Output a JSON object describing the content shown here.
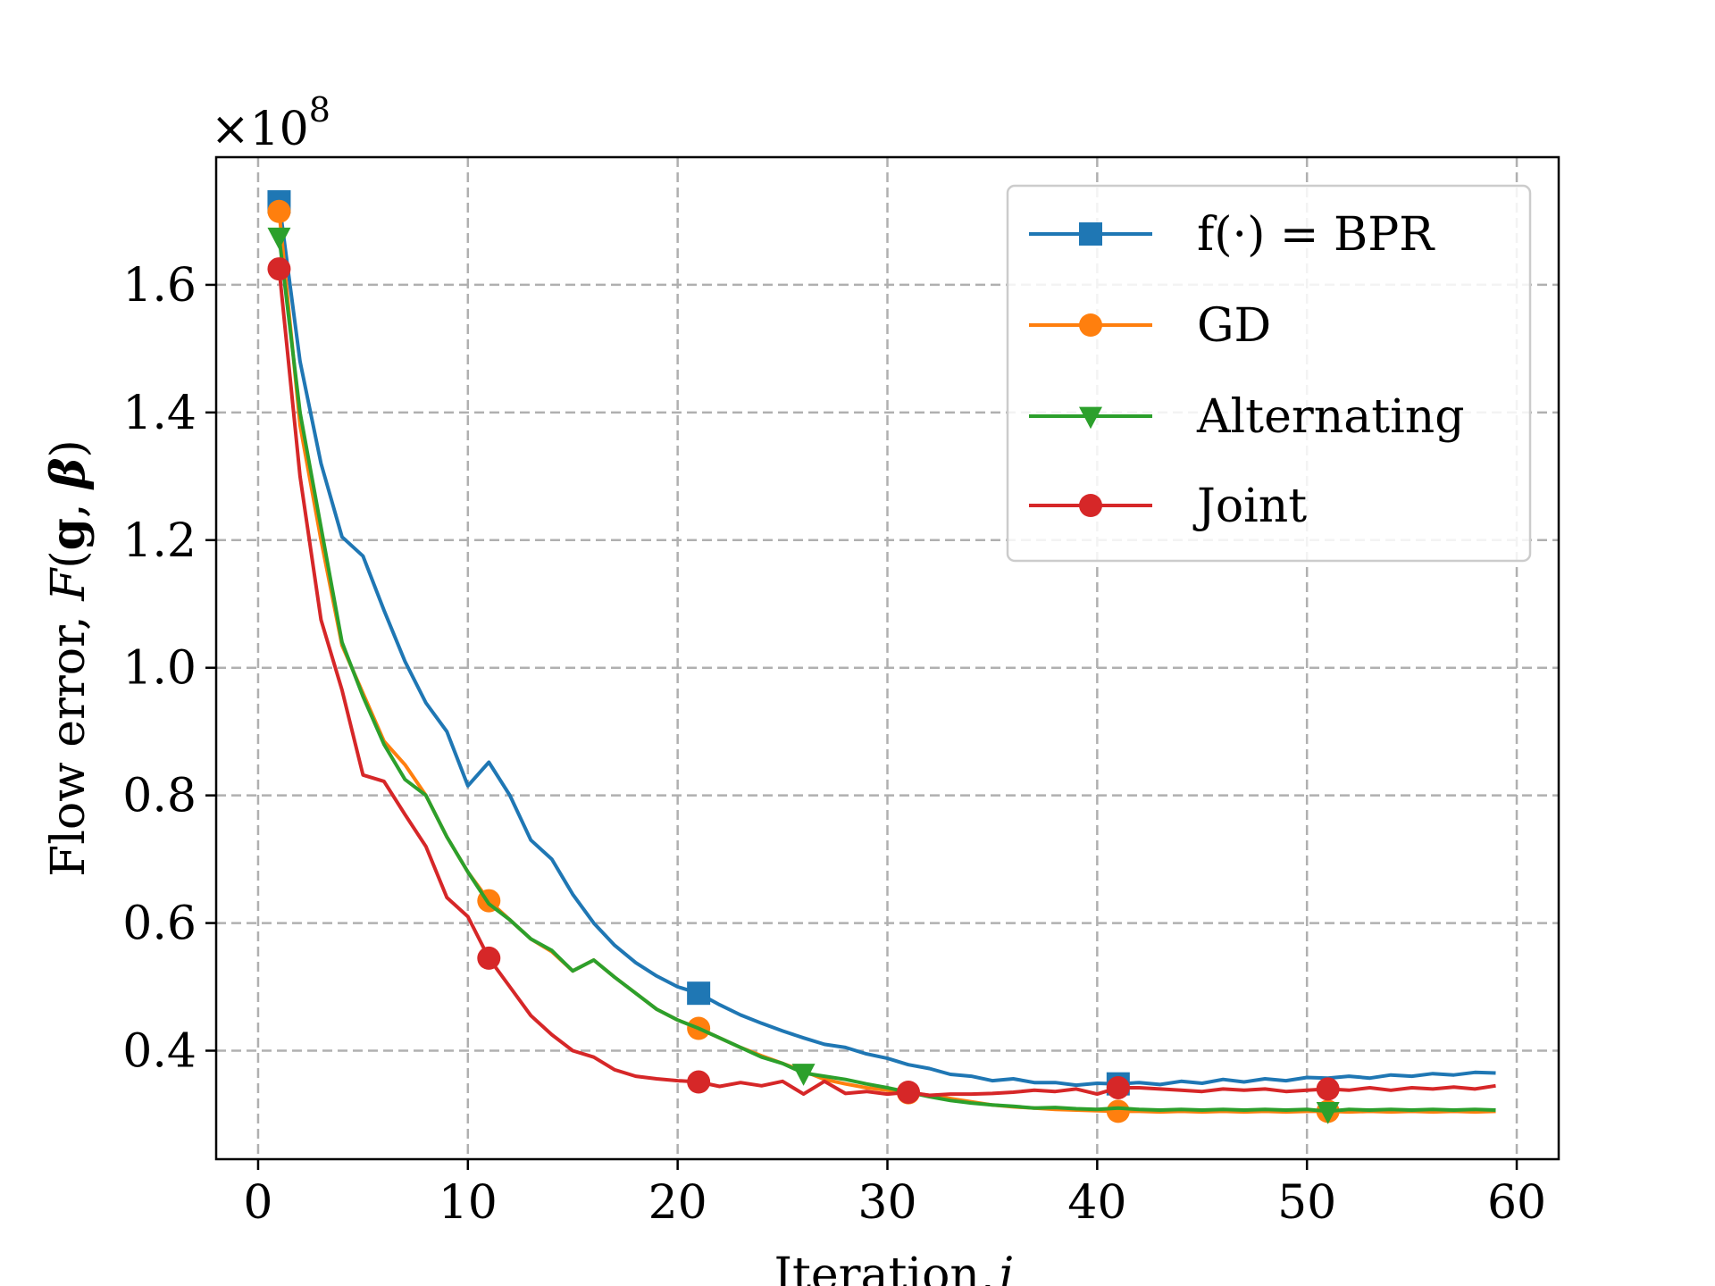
{
  "chart_data": {
    "type": "line",
    "title": "",
    "xlabel": "Iteration, j",
    "ylabel": "Flow error, F(g, β)",
    "y_multiplier": "×10^8",
    "xlim": [
      -2,
      62
    ],
    "ylim": [
      0.23,
      1.8
    ],
    "xticks": [
      0,
      10,
      20,
      30,
      40,
      50,
      60
    ],
    "xtick_labels": [
      "0",
      "10",
      "20",
      "30",
      "40",
      "50",
      "60"
    ],
    "yticks": [
      0.4,
      0.6,
      0.8,
      1.0,
      1.2,
      1.4,
      1.6
    ],
    "ytick_labels": [
      "0.4",
      "0.6",
      "0.8",
      "1.0",
      "1.2",
      "1.4",
      "1.6"
    ],
    "grid": true,
    "legend_position": "top-right",
    "series": [
      {
        "name": "f(·) = BPR",
        "color": "#1f77b4",
        "marker": "square",
        "marker_every": 20,
        "x": [
          1,
          2,
          3,
          4,
          5,
          6,
          7,
          8,
          9,
          10,
          11,
          12,
          13,
          14,
          15,
          16,
          17,
          18,
          19,
          20,
          21,
          22,
          23,
          24,
          25,
          26,
          27,
          28,
          29,
          30,
          31,
          32,
          33,
          34,
          35,
          36,
          37,
          38,
          39,
          40,
          41,
          42,
          43,
          44,
          45,
          46,
          47,
          48,
          49,
          50,
          51,
          52,
          53,
          54,
          55,
          56,
          57,
          58,
          59
        ],
        "y": [
          1.73,
          1.48,
          1.32,
          1.205,
          1.175,
          1.09,
          1.01,
          0.945,
          0.9,
          0.815,
          0.852,
          0.8,
          0.73,
          0.7,
          0.645,
          0.6,
          0.565,
          0.538,
          0.517,
          0.5,
          0.49,
          0.472,
          0.456,
          0.443,
          0.431,
          0.42,
          0.41,
          0.405,
          0.395,
          0.388,
          0.378,
          0.372,
          0.363,
          0.36,
          0.353,
          0.356,
          0.35,
          0.35,
          0.346,
          0.349,
          0.348,
          0.35,
          0.347,
          0.352,
          0.349,
          0.355,
          0.351,
          0.356,
          0.353,
          0.358,
          0.357,
          0.36,
          0.357,
          0.362,
          0.36,
          0.364,
          0.362,
          0.366,
          0.365
        ]
      },
      {
        "name": "GD",
        "color": "#ff7f0e",
        "marker": "circle",
        "marker_every": 10,
        "x": [
          1,
          2,
          3,
          4,
          5,
          6,
          7,
          8,
          9,
          10,
          11,
          12,
          13,
          14,
          15,
          16,
          17,
          18,
          19,
          20,
          21,
          22,
          23,
          24,
          25,
          26,
          27,
          28,
          29,
          30,
          31,
          32,
          33,
          34,
          35,
          36,
          37,
          38,
          39,
          40,
          41,
          42,
          43,
          44,
          45,
          46,
          47,
          48,
          49,
          50,
          51,
          52,
          53,
          54,
          55,
          56,
          57,
          58,
          59
        ],
        "y": [
          1.715,
          1.38,
          1.2,
          1.035,
          0.96,
          0.885,
          0.848,
          0.8,
          0.735,
          0.68,
          0.635,
          0.605,
          0.575,
          0.555,
          0.525,
          0.542,
          0.515,
          0.49,
          0.465,
          0.448,
          0.435,
          0.42,
          0.405,
          0.392,
          0.38,
          0.368,
          0.355,
          0.348,
          0.342,
          0.338,
          0.334,
          0.33,
          0.325,
          0.32,
          0.315,
          0.312,
          0.31,
          0.308,
          0.307,
          0.306,
          0.305,
          0.305,
          0.304,
          0.305,
          0.304,
          0.305,
          0.304,
          0.305,
          0.304,
          0.305,
          0.305,
          0.304,
          0.305,
          0.304,
          0.305,
          0.304,
          0.305,
          0.304,
          0.305
        ]
      },
      {
        "name": "Alternating",
        "color": "#2ca02c",
        "marker": "triangle-down",
        "marker_every": 25,
        "x": [
          1,
          2,
          3,
          4,
          5,
          6,
          7,
          8,
          9,
          10,
          11,
          12,
          13,
          14,
          15,
          16,
          17,
          18,
          19,
          20,
          21,
          22,
          23,
          24,
          25,
          26,
          27,
          28,
          29,
          30,
          31,
          32,
          33,
          34,
          35,
          36,
          37,
          38,
          39,
          40,
          41,
          42,
          43,
          44,
          45,
          46,
          47,
          48,
          49,
          50,
          51,
          52,
          53,
          54,
          55,
          56,
          57,
          58,
          59
        ],
        "y": [
          1.675,
          1.4,
          1.22,
          1.04,
          0.955,
          0.88,
          0.825,
          0.8,
          0.735,
          0.68,
          0.63,
          0.605,
          0.575,
          0.557,
          0.525,
          0.542,
          0.515,
          0.49,
          0.465,
          0.448,
          0.435,
          0.42,
          0.405,
          0.39,
          0.38,
          0.365,
          0.36,
          0.355,
          0.348,
          0.342,
          0.335,
          0.328,
          0.322,
          0.318,
          0.315,
          0.313,
          0.31,
          0.311,
          0.309,
          0.308,
          0.31,
          0.308,
          0.307,
          0.308,
          0.307,
          0.308,
          0.307,
          0.308,
          0.307,
          0.308,
          0.305,
          0.308,
          0.307,
          0.308,
          0.307,
          0.308,
          0.307,
          0.308,
          0.307
        ]
      },
      {
        "name": "Joint",
        "color": "#d62728",
        "marker": "circle",
        "marker_every": 10,
        "x": [
          1,
          2,
          3,
          4,
          5,
          6,
          7,
          8,
          9,
          10,
          11,
          12,
          13,
          14,
          15,
          16,
          17,
          18,
          19,
          20,
          21,
          22,
          23,
          24,
          25,
          26,
          27,
          28,
          29,
          30,
          31,
          32,
          33,
          34,
          35,
          36,
          37,
          38,
          39,
          40,
          41,
          42,
          43,
          44,
          45,
          46,
          47,
          48,
          49,
          50,
          51,
          52,
          53,
          54,
          55,
          56,
          57,
          58,
          59
        ],
        "y": [
          1.625,
          1.3,
          1.075,
          0.965,
          0.832,
          0.822,
          0.77,
          0.72,
          0.64,
          0.61,
          0.545,
          0.5,
          0.455,
          0.425,
          0.4,
          0.39,
          0.37,
          0.36,
          0.356,
          0.353,
          0.351,
          0.344,
          0.35,
          0.345,
          0.352,
          0.332,
          0.352,
          0.333,
          0.336,
          0.332,
          0.335,
          0.33,
          0.332,
          0.332,
          0.333,
          0.335,
          0.338,
          0.336,
          0.34,
          0.332,
          0.342,
          0.342,
          0.34,
          0.338,
          0.336,
          0.34,
          0.338,
          0.34,
          0.336,
          0.338,
          0.34,
          0.338,
          0.342,
          0.338,
          0.342,
          0.34,
          0.343,
          0.34,
          0.345
        ]
      }
    ]
  }
}
